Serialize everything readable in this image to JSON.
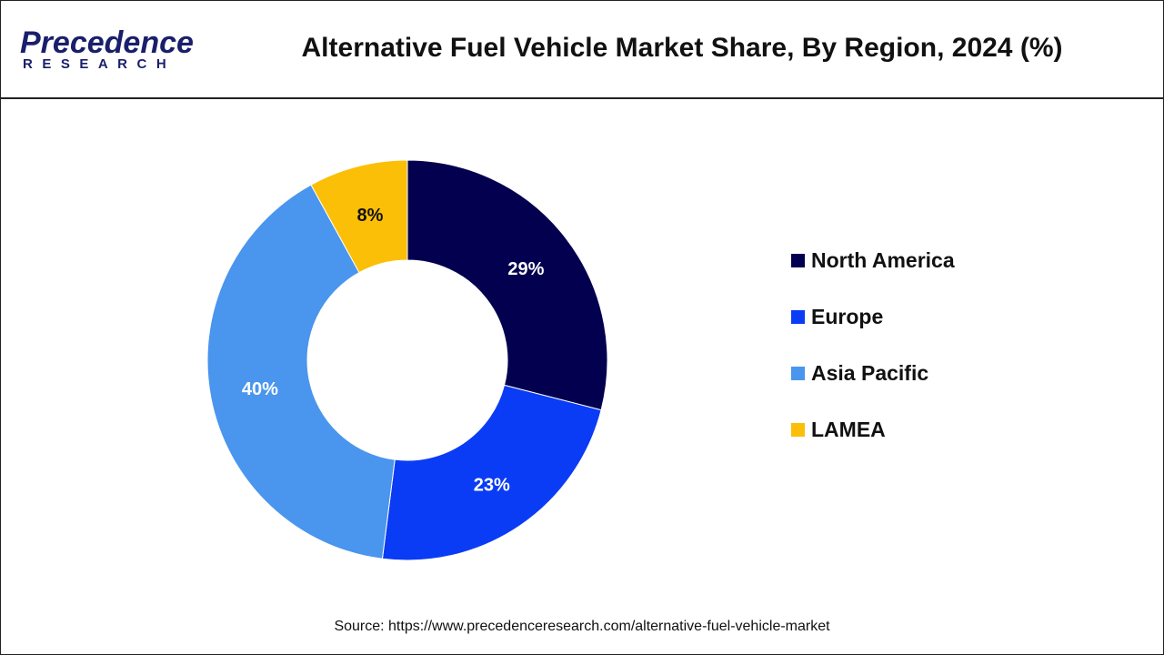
{
  "brand": {
    "logo_main": "Precedence",
    "logo_sub": "RESEARCH"
  },
  "chart_data": {
    "type": "pie",
    "variant": "donut",
    "title": "Alternative Fuel Vehicle Market Share, By Region, 2024 (%)",
    "categories": [
      "North America",
      "Europe",
      "Asia Pacific",
      "LAMEA"
    ],
    "values": [
      29,
      23,
      40,
      8
    ],
    "labels": [
      "29%",
      "23%",
      "40%",
      "8%"
    ],
    "colors": [
      "#03004f",
      "#0a3cf5",
      "#4a95ed",
      "#fbbf07"
    ],
    "label_colors": [
      "#ffffff",
      "#ffffff",
      "#ffffff",
      "#111111"
    ],
    "legend_position": "right",
    "start": "12 o'clock, clockwise"
  },
  "source": "Source: https://www.precedenceresearch.com/alternative-fuel-vehicle-market"
}
